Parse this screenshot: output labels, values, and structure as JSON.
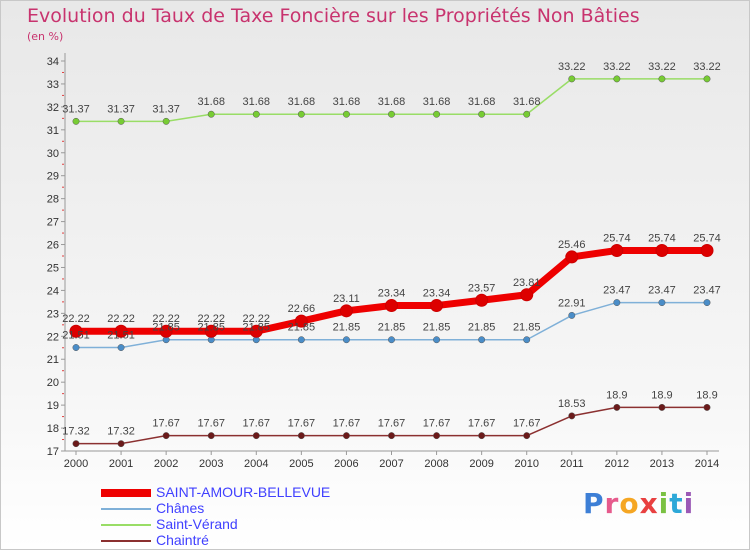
{
  "title": "Evolution du Taux de Taxe Foncière sur les Propriétés Non Bâties",
  "subtitle": "(en %)",
  "logo": {
    "letters": [
      "P",
      "r",
      "o",
      "x",
      "i",
      "t",
      "i"
    ],
    "colors": [
      "#3d7fd6",
      "#e65a8c",
      "#f5a623",
      "#e84040",
      "#7ac142",
      "#2da8d8",
      "#9b59b6"
    ]
  },
  "chart_data": {
    "type": "line",
    "title": "Evolution du Taux de Taxe Foncière sur les Propriétés Non Bâties",
    "ylabel": "(en %)",
    "x": [
      "2000",
      "2001",
      "2002",
      "2003",
      "2004",
      "2005",
      "2006",
      "2007",
      "2008",
      "2009",
      "2010",
      "2011",
      "2012",
      "2013",
      "2014"
    ],
    "ylim": [
      17,
      34
    ],
    "yticks": [
      17,
      18,
      19,
      20,
      21,
      22,
      23,
      24,
      25,
      26,
      27,
      28,
      29,
      30,
      31,
      32,
      33,
      34
    ],
    "grid": false,
    "legend_position": "bottom-left",
    "series": [
      {
        "name": "SAINT-AMOUR-BELLEVUE",
        "color": "#ee0000",
        "marker": "#dd0000",
        "width": 7,
        "values": [
          22.22,
          22.22,
          22.22,
          22.22,
          22.22,
          22.66,
          23.11,
          23.34,
          23.34,
          23.57,
          23.81,
          25.46,
          25.74,
          25.74,
          25.74
        ],
        "labels": [
          "22.22",
          "22.22",
          "22.22",
          "22.22",
          "22.22",
          "22.66",
          "23.11",
          "23.34",
          "23.34",
          "23.57",
          "23.81",
          "25.46",
          "25.74",
          "25.74",
          "25.74"
        ]
      },
      {
        "name": "Chânes",
        "color": "#7fb0d8",
        "marker": "#4a8dc8",
        "width": 1.5,
        "values": [
          21.51,
          21.51,
          21.85,
          21.85,
          21.85,
          21.85,
          21.85,
          21.85,
          21.85,
          21.85,
          21.85,
          22.91,
          23.47,
          23.47,
          23.47
        ],
        "labels": [
          "21.51",
          "21.51",
          "21.85",
          "21.85",
          "21.85",
          "21.85",
          "21.85",
          "21.85",
          "21.85",
          "21.85",
          "21.85",
          "22.91",
          "23.47",
          "23.47",
          "23.47"
        ]
      },
      {
        "name": "Saint-Vérand",
        "color": "#99dd66",
        "marker": "#77cc33",
        "width": 1.5,
        "values": [
          31.37,
          31.37,
          31.37,
          31.68,
          31.68,
          31.68,
          31.68,
          31.68,
          31.68,
          31.68,
          31.68,
          33.22,
          33.22,
          33.22,
          33.22
        ],
        "labels": [
          "31.37",
          "31.37",
          "31.37",
          "31.68",
          "31.68",
          "31.68",
          "31.68",
          "31.68",
          "31.68",
          "31.68",
          "31.68",
          "33.22",
          "33.22",
          "33.22",
          "33.22"
        ]
      },
      {
        "name": "Chaintré",
        "color": "#8b3030",
        "marker": "#6b1a1a",
        "width": 1.5,
        "values": [
          17.32,
          17.32,
          17.67,
          17.67,
          17.67,
          17.67,
          17.67,
          17.67,
          17.67,
          17.67,
          17.67,
          18.53,
          18.9,
          18.9,
          18.9
        ],
        "labels": [
          "17.32",
          "17.32",
          "17.67",
          "17.67",
          "17.67",
          "17.67",
          "17.67",
          "17.67",
          "17.67",
          "17.67",
          "17.67",
          "18.53",
          "18.9",
          "18.9",
          "18.9"
        ]
      }
    ]
  }
}
